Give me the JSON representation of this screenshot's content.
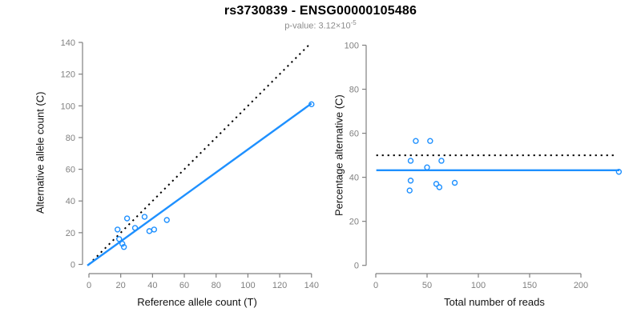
{
  "header": {
    "title": "rs3730839 - ENSG00000105486",
    "p_value_label": "p-value: 3.12×10",
    "p_value_exponent": "-5"
  },
  "colors": {
    "accent_blue": "#1E90FF",
    "reference_line_black": "#000000",
    "axis_gray": "#808080",
    "axis_title_black": "#111111",
    "subtitle_gray": "#8c8c8c"
  },
  "chart_data": [
    {
      "type": "scatter",
      "name": "allele-counts-scatter",
      "xlabel": "Reference allele count (T)",
      "ylabel": "Alternative allele count (C)",
      "xlim": [
        0,
        140
      ],
      "ylim": [
        0,
        140
      ],
      "xticks": [
        0,
        20,
        40,
        60,
        80,
        100,
        120,
        140
      ],
      "yticks": [
        0,
        20,
        40,
        60,
        80,
        100,
        120,
        140
      ],
      "grid": false,
      "point_style": "open-circle",
      "points": [
        [
          18,
          22
        ],
        [
          19,
          16
        ],
        [
          21,
          13
        ],
        [
          22,
          11
        ],
        [
          24,
          29
        ],
        [
          29,
          23
        ],
        [
          35,
          30
        ],
        [
          38,
          21
        ],
        [
          41,
          22
        ],
        [
          49,
          28
        ],
        [
          140,
          101
        ]
      ],
      "lines": [
        {
          "name": "identity-line",
          "style": "dotted",
          "color": "#000000",
          "from": [
            0,
            0
          ],
          "to": [
            139,
            139
          ]
        },
        {
          "name": "regression-line",
          "style": "solid",
          "color": "#1E90FF",
          "from": [
            -1,
            -0.7
          ],
          "to": [
            140,
            101.5
          ]
        }
      ]
    },
    {
      "type": "scatter",
      "name": "percentage-alternative-scatter",
      "xlabel": "Total number of reads",
      "ylabel": "Percentage alternative (C)",
      "xlim": [
        0,
        200
      ],
      "ylim": [
        0,
        100
      ],
      "xticks": [
        0,
        50,
        100,
        150,
        200
      ],
      "yticks": [
        0,
        20,
        40,
        60,
        80,
        100
      ],
      "grid": false,
      "point_style": "open-circle",
      "points": [
        [
          33,
          34
        ],
        [
          34,
          38.5
        ],
        [
          34,
          47.5
        ],
        [
          39,
          56.5
        ],
        [
          50,
          44.5
        ],
        [
          53,
          56.5
        ],
        [
          59,
          37
        ],
        [
          62,
          35.5
        ],
        [
          64,
          47.5
        ],
        [
          77,
          37.5
        ],
        [
          237,
          42.5
        ]
      ],
      "lines": [
        {
          "name": "expected-50pct-line",
          "style": "dotted",
          "color": "#000000",
          "from": [
            0.5,
            50
          ],
          "to": [
            234,
            50
          ]
        },
        {
          "name": "mean-percentage-line",
          "style": "solid",
          "color": "#1E90FF",
          "from": [
            0.5,
            43.2
          ],
          "to": [
            237.5,
            43.2
          ]
        }
      ]
    }
  ]
}
